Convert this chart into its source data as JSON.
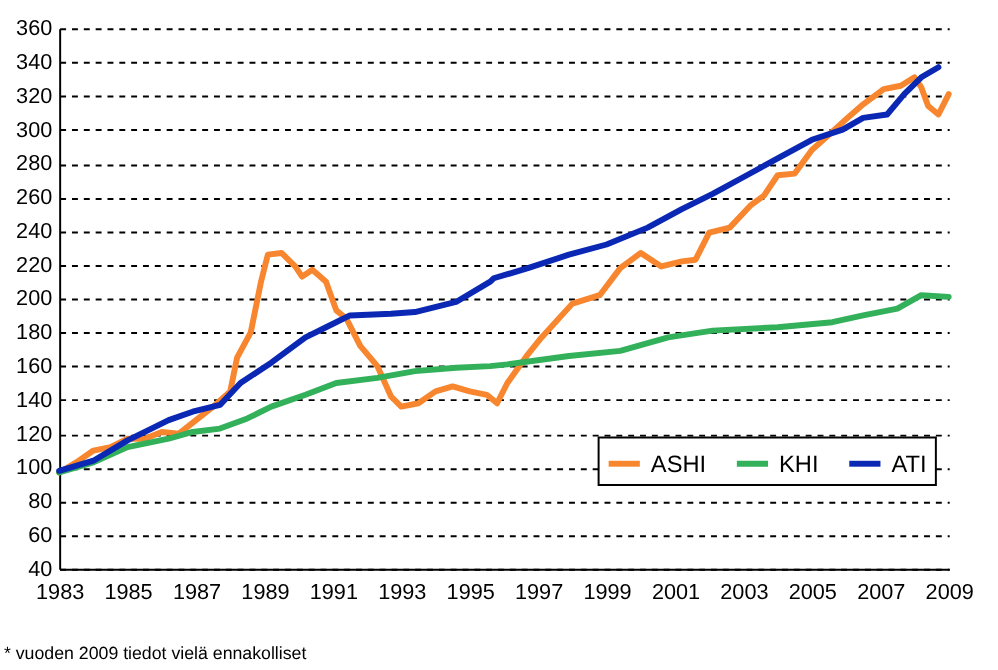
{
  "chart_data": {
    "type": "line",
    "xlim": [
      1983,
      2009
    ],
    "xticks": [
      1983,
      1985,
      1987,
      1989,
      1991,
      1993,
      1995,
      1997,
      1999,
      2001,
      2003,
      2005,
      2007,
      2009
    ],
    "ylim": [
      40,
      360
    ],
    "yticks": [
      40,
      60,
      80,
      100,
      120,
      140,
      160,
      180,
      200,
      220,
      240,
      260,
      280,
      300,
      320,
      340,
      360
    ],
    "grid": "y",
    "legend": "bottom right",
    "line_style": "solid",
    "marker": "none",
    "annotations": [
      "* vuoden 2009 tiedot vielä ennakolliset"
    ],
    "series": [
      {
        "name": "ASHI",
        "color": "#f7862f",
        "x": [
          1983,
          1983.5,
          1984,
          1984.5,
          1985,
          1985.5,
          1986,
          1986.5,
          1987,
          1987.5,
          1988,
          1988.2,
          1988.6,
          1988.9,
          1989.1,
          1989.5,
          1989.9,
          1990.1,
          1990.4,
          1990.8,
          1991.1,
          1991.4,
          1991.8,
          1992.3,
          1992.7,
          1993,
          1993.5,
          1994,
          1994.5,
          1995,
          1995.5,
          1995.8,
          1996.1,
          1996.7,
          1997.1,
          1998.0,
          1998.8,
          1999.4,
          2000.0,
          2000.6,
          2001.2,
          2001.6,
          2002.0,
          2002.6,
          2003.2,
          2003.6,
          2004.0,
          2004.5,
          2005.0,
          2005.5,
          2006.1,
          2006.5,
          2007.1,
          2007.6,
          2008.0,
          2008.2,
          2008.4,
          2008.7,
          2009.0
        ],
        "values": [
          97,
          103,
          110,
          112,
          117,
          117,
          121,
          120,
          128,
          136,
          145,
          165,
          180,
          210,
          226,
          227,
          219,
          213,
          217,
          210,
          193,
          188,
          172,
          160,
          142,
          136,
          138,
          145,
          148,
          145,
          143,
          138,
          150,
          167,
          177,
          197,
          202,
          218,
          227,
          219,
          222,
          223,
          239,
          242,
          255,
          261,
          273,
          274,
          288,
          297,
          308,
          315,
          324,
          326,
          331,
          325,
          314,
          309,
          321
        ]
      },
      {
        "name": "KHI",
        "color": "#33b05a",
        "x": [
          1983,
          1984.0,
          1985.0,
          1986.2,
          1986.9,
          1987.7,
          1988.5,
          1989.2,
          1990.2,
          1991.1,
          1992.3,
          1993.4,
          1994.6,
          1995.6,
          1996.1,
          1997.9,
          1999.4,
          2000.8,
          2002.1,
          2004.0,
          2005.6,
          2006.5,
          2007.5,
          2008.2,
          2009.0
        ],
        "values": [
          97,
          103,
          112,
          117,
          121,
          123,
          129,
          136,
          143,
          150,
          153,
          157,
          159,
          160,
          161,
          166,
          169,
          177,
          181,
          183,
          186,
          190,
          194,
          202,
          201
        ]
      },
      {
        "name": "ATI",
        "color": "#0a28b4",
        "x": [
          1983,
          1984.0,
          1985.0,
          1986.2,
          1986.9,
          1987.7,
          1988.3,
          1989.2,
          1990.2,
          1990.8,
          1991.5,
          1992.7,
          1993.4,
          1994.6,
          1995.6,
          1995.7,
          1996.7,
          1997.9,
          1999.0,
          2000.2,
          2001.2,
          2002.1,
          2003.1,
          2004.0,
          2005.0,
          2005.9,
          2006.5,
          2007.2,
          2007.7,
          2008.2,
          2008.7
        ],
        "values": [
          98,
          104,
          116,
          128,
          133,
          137,
          150,
          162,
          177,
          183,
          190,
          191,
          192,
          198,
          210,
          212,
          218,
          226,
          232,
          242,
          253,
          262,
          273,
          283,
          294,
          300,
          307,
          309,
          321,
          331,
          337
        ]
      }
    ]
  }
}
